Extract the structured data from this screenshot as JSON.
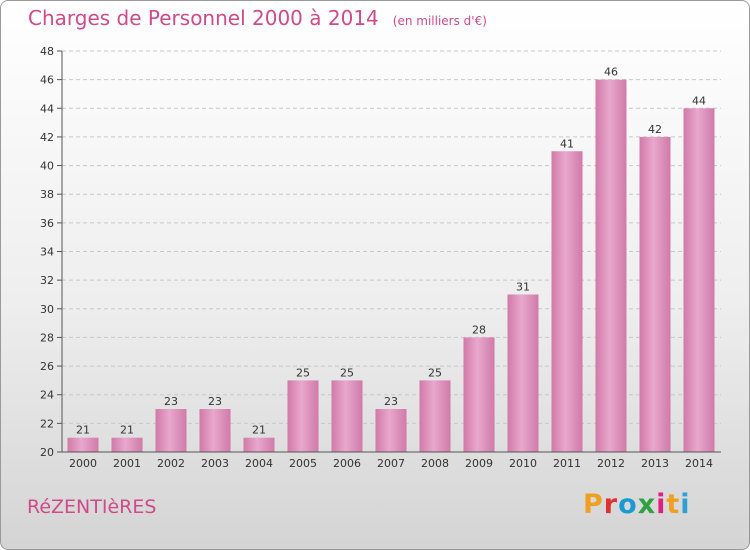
{
  "header": {
    "title": "Charges de Personnel 2000 à 2014",
    "subtitle": "(en milliers d'€)"
  },
  "footer": {
    "commune": "RéZENTIèRES",
    "logo": "Proxiti",
    "logo_colors": [
      "#f0a020",
      "#e03030",
      "#1a9ad0",
      "#30a040",
      "#e02080",
      "#f0a020",
      "#30a0d0"
    ]
  },
  "colors": {
    "bar": "#d07aa8",
    "bar_light": "#e8a8cc",
    "title": "#d04a8a"
  },
  "chart_data": {
    "type": "bar",
    "categories": [
      "2000",
      "2001",
      "2002",
      "2003",
      "2004",
      "2005",
      "2006",
      "2007",
      "2008",
      "2009",
      "2010",
      "2011",
      "2012",
      "2013",
      "2014"
    ],
    "values": [
      21,
      21,
      23,
      23,
      21,
      25,
      25,
      23,
      25,
      28,
      31,
      41,
      46,
      42,
      44
    ],
    "ylim": [
      20,
      48
    ],
    "yticks": [
      20,
      22,
      24,
      26,
      28,
      30,
      32,
      34,
      36,
      38,
      40,
      42,
      44,
      46,
      48
    ],
    "grid": true,
    "title": "Charges de Personnel 2000 à 2014"
  }
}
